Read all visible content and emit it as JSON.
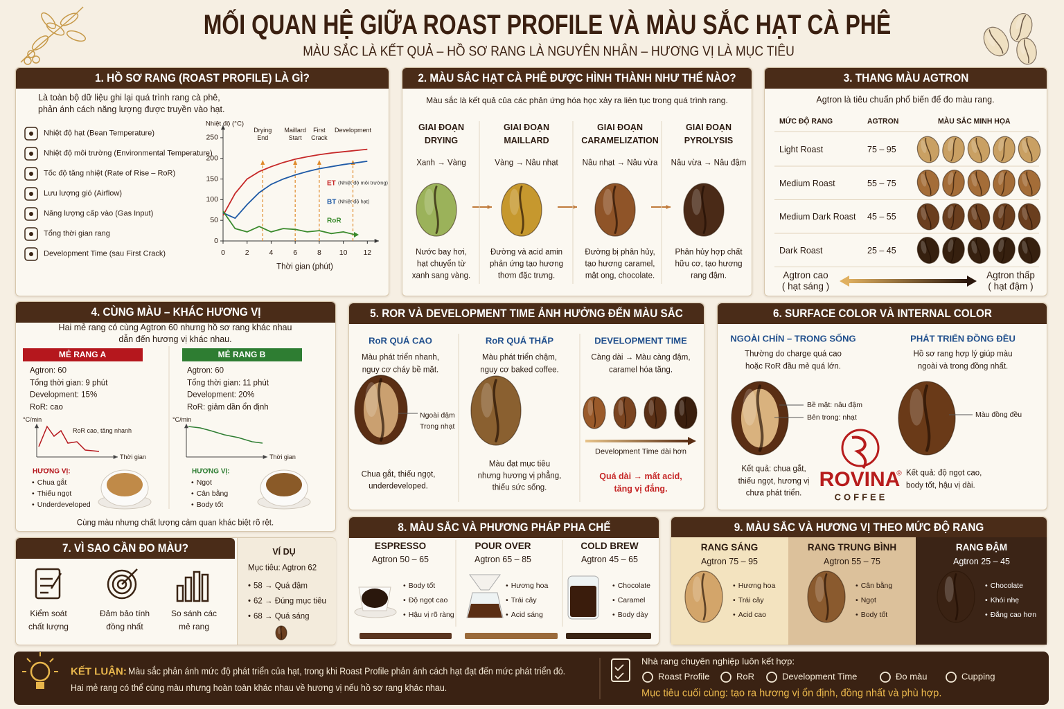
{
  "header": {
    "title": "MỐI QUAN HỆ GIỮA ROAST PROFILE VÀ MÀU SẮC HẠT CÀ PHÊ",
    "subtitle": "MÀU SẮC LÀ KẾT QUẢ – HỒ SƠ RANG LÀ NGUYÊN NHÂN – HƯƠNG VỊ LÀ MỤC TIÊU"
  },
  "s1": {
    "title": "1. HỒ SƠ RANG (ROAST PROFILE) LÀ GÌ?",
    "intro": [
      "Là toàn bộ dữ liệu ghi lại quá trình rang cà phê,",
      "phản ánh cách năng lượng được truyền vào hạt."
    ],
    "items": [
      "Nhiệt độ hạt (Bean Temperature)",
      "Nhiệt độ môi trường (Environmental Temperature)",
      "Tốc độ tăng nhiệt (Rate of Rise – RoR)",
      "Lưu lượng gió (Airflow)",
      "Năng lượng cấp vào (Gas Input)",
      "Tổng thời gian rang",
      "Development Time (sau First Crack)"
    ],
    "chart": {
      "type": "line",
      "y_label": "Nhiệt độ (°C)",
      "x_label": "Thời gian (phút)",
      "xlim": [
        0,
        12.5
      ],
      "ylim": [
        0,
        270
      ],
      "xticks": [
        0,
        2,
        4,
        6,
        8,
        10,
        12
      ],
      "yticks": [
        0,
        50,
        100,
        150,
        200,
        250
      ],
      "x": [
        0,
        1,
        2,
        3,
        4,
        5,
        6,
        7,
        8,
        9,
        10,
        11,
        12
      ],
      "series": [
        {
          "name": "ET",
          "note": "(Nhiệt độ môi trường)",
          "color": "#c62828",
          "values": [
            62,
            115,
            150,
            168,
            180,
            190,
            198,
            204,
            209,
            213,
            216,
            219,
            222
          ]
        },
        {
          "name": "BT",
          "note": "(Nhiệt độ hạt)",
          "color": "#1f5aa6",
          "values": [
            68,
            55,
            88,
            117,
            137,
            150,
            160,
            168,
            175,
            180,
            185,
            189,
            193
          ]
        },
        {
          "name": "RoR",
          "color": "#3a8a2c",
          "values": [
            72,
            30,
            22,
            35,
            22,
            30,
            28,
            22,
            25,
            18,
            22,
            15,
            null
          ]
        }
      ],
      "events": [
        {
          "label": [
            "Drying",
            "End"
          ],
          "x": 3.3
        },
        {
          "label": [
            "Maillard",
            "Start"
          ],
          "x": 6
        },
        {
          "label": [
            "First",
            "Crack"
          ],
          "x": 8
        },
        {
          "label": [
            "Development"
          ],
          "x": 10.8
        }
      ]
    }
  },
  "s2": {
    "title": "2. MÀU SẮC HẠT CÀ PHÊ ĐƯỢC HÌNH THÀNH NHƯ THẾ NÀO?",
    "intro": "Màu sắc là kết quả của các phản ứng hóa học xảy ra liên tục trong quá trình rang.",
    "stages": [
      {
        "label": [
          "GIAI ĐOẠN",
          "DRYING"
        ],
        "change": "Xanh → Vàng",
        "desc": [
          "Nước bay hơi,",
          "hạt chuyển từ",
          "xanh sang vàng."
        ]
      },
      {
        "label": [
          "GIAI ĐOẠN",
          "MAILLARD"
        ],
        "change": "Vàng → Nâu nhạt",
        "desc": [
          "Đường và acid amin",
          "phản ứng tạo hương",
          "thơm đặc trưng."
        ]
      },
      {
        "label": [
          "GIAI ĐOẠN",
          "CARAMELIZATION"
        ],
        "change": "Nâu nhạt → Nâu vừa",
        "desc": [
          "Đường bị phân hủy,",
          "tạo hương caramel,",
          "mật ong, chocolate."
        ]
      },
      {
        "label": [
          "GIAI ĐOẠN",
          "PYROLYSIS"
        ],
        "change": "Nâu vừa → Nâu đậm",
        "desc": [
          "Phân hủy hợp chất",
          "hữu cơ, tạo hương",
          "rang đậm."
        ]
      }
    ]
  },
  "s3": {
    "title": "3. THANG MÀU AGTRON",
    "intro": "Agtron là tiêu chuẩn phổ biến để đo màu rang.",
    "headers": [
      "MỨC ĐỘ RANG",
      "AGTRON",
      "MÀU SẮC MINH HỌA"
    ],
    "rows": [
      [
        "Light Roast",
        "75 – 95"
      ],
      [
        "Medium Roast",
        "55 – 75"
      ],
      [
        "Medium Dark Roast",
        "45 – 55"
      ],
      [
        "Dark Roast",
        "25 – 45"
      ]
    ],
    "scale_left": [
      "Agtron cao",
      "( hạt sáng )"
    ],
    "scale_right": [
      "Agtron thấp",
      "( hạt đậm )"
    ]
  },
  "s4": {
    "title": "4. CÙNG MÀU – KHÁC HƯƠNG VỊ",
    "intro": [
      "Hai mẻ rang có cùng Agtron 60 nhưng hồ sơ rang khác nhau",
      "dẫn đến hương vị khác nhau."
    ],
    "batches": [
      {
        "name": "MẺ RANG A",
        "stats": [
          "Agtron: 60",
          "Tổng thời gian: 9 phút",
          "Development: 15%",
          "RoR: cao"
        ],
        "y_unit": "°C/min",
        "curve_label": "RoR cao, tăng nhanh",
        "x_unit": "Thời gian",
        "flavor_title": "HƯƠNG VỊ:",
        "flavors": [
          "Chua gắt",
          "Thiếu ngọt",
          "Underdeveloped"
        ]
      },
      {
        "name": "MẺ RANG B",
        "stats": [
          "Agtron: 60",
          "Tổng thời gian: 11 phút",
          "Development: 20%",
          "RoR: giảm dần ổn định"
        ],
        "y_unit": "°C/min",
        "x_unit": "Thời gian",
        "flavor_title": "HƯƠNG VỊ:",
        "flavors": [
          "Ngọt",
          "Cân bằng",
          "Body tốt"
        ]
      }
    ],
    "footer": "Cùng màu nhưng chất lượng cảm quan khác biệt rõ rệt."
  },
  "s5": {
    "title": "5. ROR VÀ DEVELOPMENT TIME ẢNH HƯỞNG ĐẾN MÀU SẮC",
    "columns": [
      {
        "heading": "RoR QUÁ CAO",
        "desc": [
          "Màu phát triển nhanh,",
          "nguy cơ cháy bề mặt."
        ],
        "callouts": [
          "Ngoài đậm",
          "Trong nhạt"
        ],
        "result": [
          "Chua gắt, thiếu ngọt,",
          "underdeveloped."
        ]
      },
      {
        "heading": "RoR QUÁ THẤP",
        "desc": [
          "Màu phát triển chậm,",
          "nguy cơ baked coffee."
        ],
        "result": [
          "Màu đạt mục tiêu",
          "nhưng hương vị phẳng,",
          "thiếu sức sống."
        ]
      },
      {
        "heading": "DEVELOPMENT TIME",
        "desc": [
          "Càng dài → Màu càng đậm,",
          "caramel hóa tăng."
        ],
        "arrow_label": "Development Time dài hơn",
        "result": [
          "Quá dài → mất acid,",
          "tăng vị đắng."
        ]
      }
    ]
  },
  "s6": {
    "title": "6. SURFACE COLOR VÀ INTERNAL COLOR",
    "left": {
      "heading": "NGOÀI CHÍN – TRONG SỐNG",
      "desc": [
        "Thường do charge quá cao",
        "hoặc RoR đầu mẻ quá lớn."
      ],
      "callouts": [
        "Bề mặt: nâu đậm",
        "Bên trong: nhạt"
      ],
      "result": [
        "Kết quả: chua gắt,",
        "thiếu ngọt, hương vị",
        "chưa phát triển."
      ]
    },
    "right": {
      "heading": "PHÁT TRIỂN ĐỒNG ĐỀU",
      "desc": [
        "Hồ sơ rang hợp lý giúp màu",
        "ngoài và trong đồng nhất."
      ],
      "callout": "Màu đồng đều",
      "result": [
        "Kết quả: độ ngọt cao,",
        "body tốt, hậu vị dài."
      ]
    },
    "logo": {
      "name": "ROVINA",
      "mark": "®",
      "sub": "COFFEE"
    }
  },
  "s7": {
    "title": "7. VÌ SAO CẦN ĐO MÀU?",
    "reasons": [
      [
        "Kiểm soát",
        "chất lượng"
      ],
      [
        "Đảm bảo tính",
        "đồng nhất"
      ],
      [
        "So sánh các",
        "mẻ rang"
      ]
    ],
    "example": {
      "title": "VÍ DỤ",
      "target": "Mục tiêu: Agtron 62",
      "items": [
        "58 → Quá đậm",
        "62 → Đúng mục tiêu",
        "68 → Quá sáng"
      ]
    }
  },
  "s8": {
    "title": "8. MÀU SẮC VÀ PHƯƠNG PHÁP PHA CHẾ",
    "methods": [
      {
        "name": "ESPRESSO",
        "agtron": "Agtron 50 – 65",
        "notes": [
          "Body tốt",
          "Độ ngọt cao",
          "Hậu vị rõ ràng"
        ]
      },
      {
        "name": "POUR OVER",
        "agtron": "Agtron 65 – 85",
        "notes": [
          "Hương hoa",
          "Trái cây",
          "Acid sáng"
        ]
      },
      {
        "name": "COLD BREW",
        "agtron": "Agtron 45 – 65",
        "notes": [
          "Chocolate",
          "Caramel",
          "Body dày"
        ]
      }
    ]
  },
  "s9": {
    "title": "9. MÀU SẮC VÀ HƯƠNG VỊ THEO MỨC ĐỘ RANG",
    "levels": [
      {
        "name": "RANG SÁNG",
        "agtron": "Agtron 75 – 95",
        "notes": [
          "Hương hoa",
          "Trái cây",
          "Acid cao"
        ]
      },
      {
        "name": "RANG TRUNG BÌNH",
        "agtron": "Agtron 55 – 75",
        "notes": [
          "Cân bằng",
          "Ngọt",
          "Body tốt"
        ]
      },
      {
        "name": "RANG ĐẬM",
        "agtron": "Agtron 25 – 45",
        "notes": [
          "Chocolate",
          "Khói nhẹ",
          "Đắng cao hơn"
        ]
      }
    ]
  },
  "conclusion": {
    "label": "KẾT LUẬN:",
    "text": [
      "Màu sắc phản ánh mức độ phát triển của hạt, trong khi Roast Profile phản ánh cách hạt đạt đến mức phát triển đó.",
      "Hai mẻ rang có thể cùng màu nhưng hoàn toàn khác nhau về hương vị nếu hồ sơ rang khác nhau."
    ],
    "tools_title": "Nhà rang chuyên nghiệp luôn kết hợp:",
    "tools": [
      "Roast Profile",
      "RoR",
      "Development Time",
      "Đo màu",
      "Cupping"
    ],
    "goal": "Mục tiêu cuối cùng: tạo ra hương vị ổn định, đồng nhất và phù hợp."
  }
}
